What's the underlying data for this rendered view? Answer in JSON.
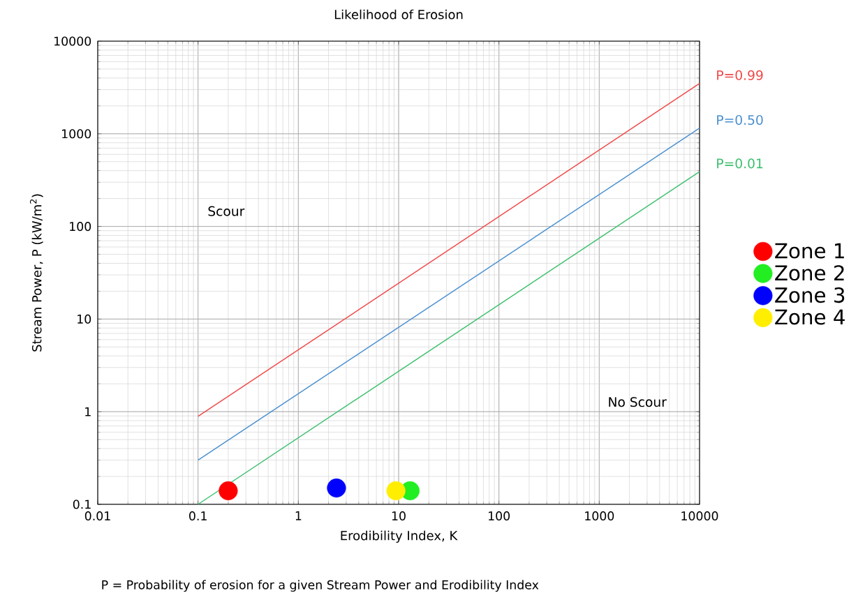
{
  "chart_data": {
    "type": "line",
    "title": "Likelihood of Erosion",
    "xlabel": "Erodibility Index, K",
    "ylabel": "Stream Power, P (kW/m$^{2}$)",
    "log": "xy",
    "grid": true,
    "legend": "right",
    "xlim": [
      0.01,
      10000
    ],
    "ylim": [
      0.1,
      10000
    ],
    "xticks": [
      0.01,
      0.1,
      1,
      10,
      100,
      1000,
      10000
    ],
    "yticks": [
      0.1,
      1,
      10,
      100,
      1000,
      10000
    ],
    "series": [
      {
        "name": "P=0.99",
        "color": "#f04848",
        "x": [
          0.1,
          10000
        ],
        "values": [
          0.89,
          3500
        ]
      },
      {
        "name": "P=0.50",
        "color": "#4a8fd0",
        "x": [
          0.1,
          10000
        ],
        "values": [
          0.3,
          1150
        ]
      },
      {
        "name": "P=0.01",
        "color": "#3cbf6e",
        "x": [
          0.1,
          10000
        ],
        "values": [
          0.1,
          390
        ]
      },
      {
        "name": "Zone 1",
        "type": "scatter",
        "marker": "circle",
        "color": "#ff0000",
        "x": [
          0.2
        ],
        "values": [
          0.14
        ]
      },
      {
        "name": "Zone 2",
        "type": "scatter",
        "marker": "circle",
        "color": "#22ee22",
        "x": [
          13
        ],
        "values": [
          0.14
        ]
      },
      {
        "name": "Zone 3",
        "type": "scatter",
        "marker": "circle",
        "color": "#0000ff",
        "x": [
          2.4
        ],
        "values": [
          0.15
        ]
      },
      {
        "name": "Zone 4",
        "type": "scatter",
        "marker": "circle",
        "color": "#ffee00",
        "x": [
          9.4
        ],
        "values": [
          0.14
        ]
      }
    ],
    "annotations": [
      "Scour",
      "No Scour",
      "P = Probability of erosion for a given Stream Power and Erodibility Index"
    ]
  }
}
